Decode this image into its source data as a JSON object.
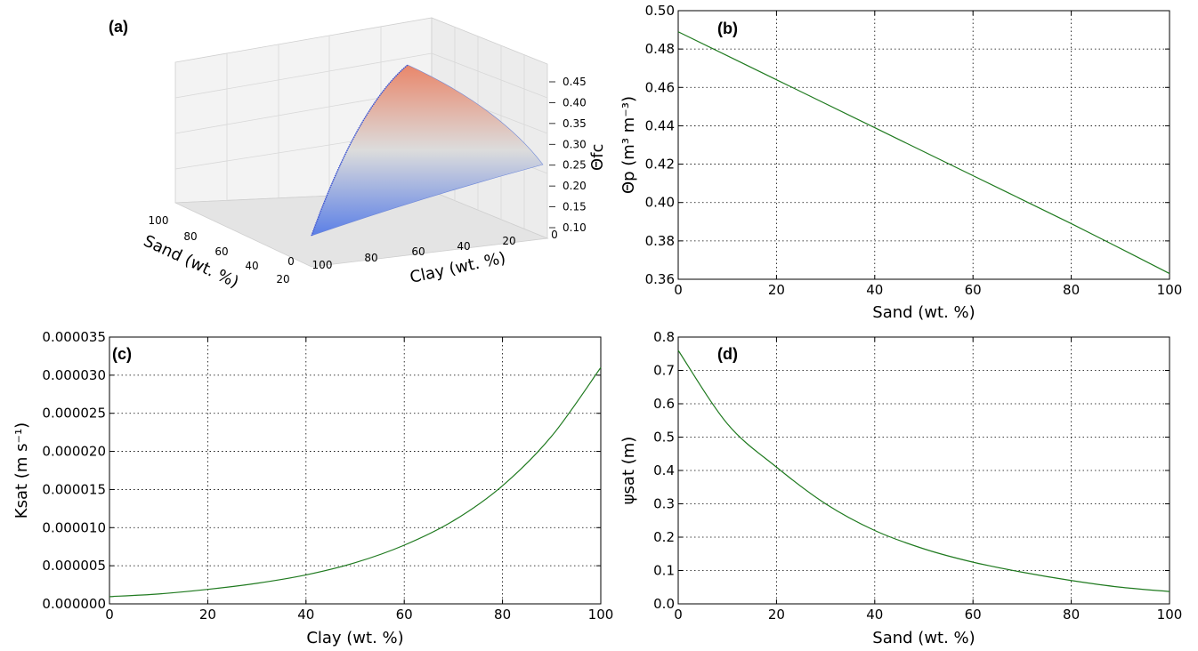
{
  "chart_data": [
    {
      "id": "a",
      "panel_label": "(a)",
      "type": "surface3d",
      "xlabel": "Sand (wt. %)",
      "ylabel": "Clay (wt. %)",
      "zlabel": "Θfc",
      "x_ticks": [
        "100",
        "80",
        "60",
        "40",
        "20",
        "0"
      ],
      "y_ticks": [
        "100",
        "80",
        "60",
        "40",
        "20",
        "0"
      ],
      "z_ticks": [
        "0.45",
        "0.40",
        "0.35",
        "0.30",
        "0.25",
        "0.20",
        "0.15",
        "0.10"
      ],
      "xlim": [
        0,
        100
      ],
      "ylim": [
        0,
        100
      ],
      "zlim": [
        0.1,
        0.45
      ],
      "colormap": [
        "#5b7fe6",
        "#dcdcdc",
        "#e9866a"
      ],
      "corners": [
        {
          "sand": 0,
          "clay": 100,
          "theta_fc": 0.45
        },
        {
          "sand": 100,
          "clay": 0,
          "theta_fc": 0.1
        },
        {
          "sand": 0,
          "clay": 0,
          "theta_fc": 0.24
        }
      ]
    },
    {
      "id": "b",
      "panel_label": "(b)",
      "type": "line",
      "xlabel": "Sand (wt. %)",
      "ylabel": "Θp (m³ m⁻³)",
      "xlim": [
        0,
        100
      ],
      "ylim": [
        0.36,
        0.5
      ],
      "x_ticks": [
        0,
        20,
        40,
        60,
        80,
        100
      ],
      "y_ticks": [
        0.36,
        0.38,
        0.4,
        0.42,
        0.44,
        0.46,
        0.48,
        0.5
      ],
      "y_tick_labels": [
        "0.36",
        "0.38",
        "0.40",
        "0.42",
        "0.44",
        "0.46",
        "0.48",
        "0.50"
      ],
      "grid": true,
      "series": [
        {
          "x": [
            0,
            20,
            40,
            60,
            80,
            100
          ],
          "y": [
            0.489,
            0.464,
            0.439,
            0.414,
            0.389,
            0.363
          ],
          "color": "#1f7a1f"
        }
      ]
    },
    {
      "id": "c",
      "panel_label": "(c)",
      "type": "line",
      "xlabel": "Clay (wt. %)",
      "ylabel": "Ksat (m s⁻¹)",
      "xlim": [
        0,
        100
      ],
      "ylim": [
        0,
        3.5e-05
      ],
      "x_ticks": [
        0,
        20,
        40,
        60,
        80,
        100
      ],
      "y_ticks": [
        0,
        5e-06,
        1e-05,
        1.5e-05,
        2e-05,
        2.5e-05,
        3e-05,
        3.5e-05
      ],
      "y_tick_labels": [
        "0.000000",
        "0.000005",
        "0.000010",
        "0.000015",
        "0.000020",
        "0.000025",
        "0.000030",
        "0.000035"
      ],
      "grid": true,
      "series": [
        {
          "x": [
            0,
            10,
            20,
            30,
            40,
            50,
            60,
            70,
            80,
            90,
            100
          ],
          "y": [
            9.5e-07,
            1.3e-06,
            1.9e-06,
            2.7e-06,
            3.8e-06,
            5.4e-06,
            7.7e-06,
            1.09e-05,
            1.55e-05,
            2.2e-05,
            3.1e-05
          ],
          "color": "#1f7a1f"
        }
      ]
    },
    {
      "id": "d",
      "panel_label": "(d)",
      "type": "line",
      "xlabel": "Sand (wt. %)",
      "ylabel": "ψsat (m)",
      "xlim": [
        0,
        100
      ],
      "ylim": [
        0,
        0.8
      ],
      "x_ticks": [
        0,
        20,
        40,
        60,
        80,
        100
      ],
      "y_ticks": [
        0,
        0.1,
        0.2,
        0.3,
        0.4,
        0.5,
        0.6,
        0.7,
        0.8
      ],
      "y_tick_labels": [
        "0.0",
        "0.1",
        "0.2",
        "0.3",
        "0.4",
        "0.5",
        "0.6",
        "0.7",
        "0.8"
      ],
      "grid": true,
      "series": [
        {
          "x": [
            0,
            10,
            20,
            30,
            40,
            50,
            60,
            70,
            80,
            90,
            100
          ],
          "y": [
            0.76,
            0.54,
            0.41,
            0.3,
            0.22,
            0.165,
            0.125,
            0.095,
            0.07,
            0.05,
            0.037
          ],
          "color": "#1f7a1f"
        }
      ]
    }
  ]
}
